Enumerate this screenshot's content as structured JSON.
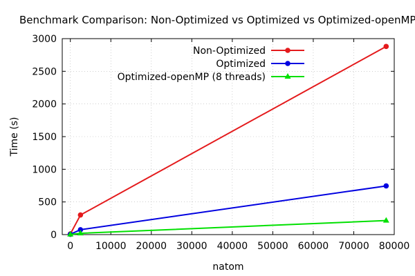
{
  "chart_data": {
    "type": "line",
    "title": "Benchmark Comparison: Non-Optimized vs Optimized vs Optimized-openMP",
    "xlabel": "natom",
    "ylabel": "Time (s)",
    "xlim": [
      -2000,
      80000
    ],
    "ylim": [
      0,
      3000
    ],
    "xticks": [
      0,
      10000,
      20000,
      30000,
      40000,
      50000,
      60000,
      70000,
      80000
    ],
    "yticks": [
      0,
      500,
      1000,
      1500,
      2000,
      2500,
      3000
    ],
    "grid": true,
    "legend_position": "top-right",
    "series": [
      {
        "name": "Non-Optimized",
        "color": "#e41a1c",
        "marker": "circle",
        "x": [
          0,
          2500,
          78000
        ],
        "y": [
          10,
          300,
          2880
        ]
      },
      {
        "name": "Optimized",
        "color": "#0000e0",
        "marker": "circle",
        "x": [
          0,
          2500,
          78000
        ],
        "y": [
          5,
          75,
          745
        ]
      },
      {
        "name": "Optimized-openMP (8 threads)",
        "color": "#00e000",
        "marker": "triangle",
        "x": [
          0,
          2500,
          78000
        ],
        "y": [
          2,
          20,
          215
        ]
      }
    ]
  }
}
